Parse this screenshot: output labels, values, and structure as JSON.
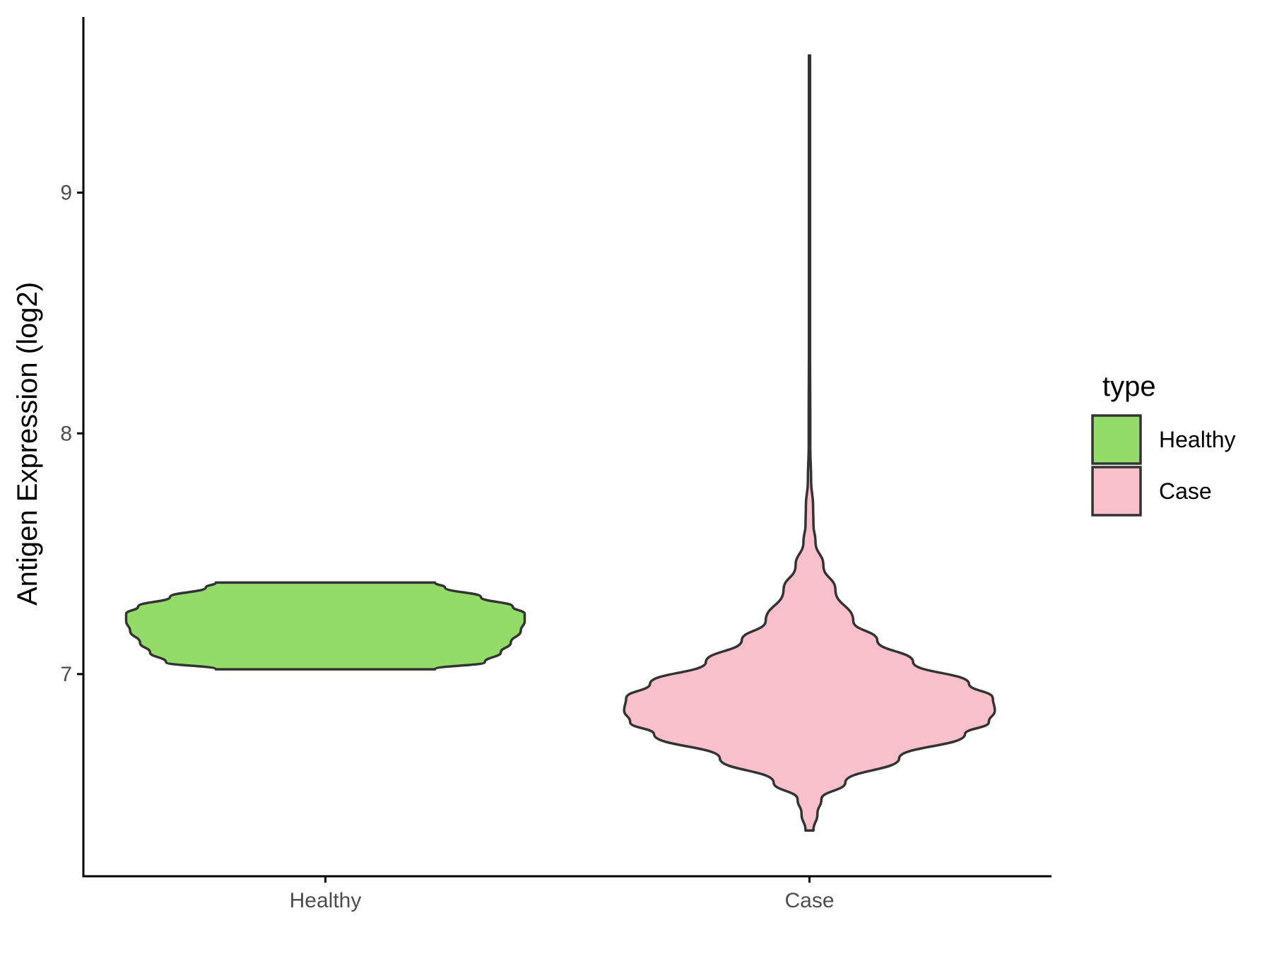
{
  "chart_data": {
    "type": "violin",
    "title": "",
    "xlabel": "",
    "ylabel": "Antigen Expression (log2)",
    "categories": [
      "Healthy",
      "Case"
    ],
    "yticks": [
      7,
      8,
      9
    ],
    "ylim": [
      6.16,
      9.73
    ],
    "grid": false,
    "legend": {
      "title": "type",
      "position": "right",
      "entries": [
        {
          "label": "Healthy",
          "color": "#93dc6a"
        },
        {
          "label": "Case",
          "color": "#f8c0cb"
        }
      ]
    },
    "series": [
      {
        "category": "Healthy",
        "color": "#93dc6a",
        "min": 7.02,
        "max": 7.38,
        "profile": [
          [
            7.02,
            0.55
          ],
          [
            7.05,
            0.8
          ],
          [
            7.09,
            0.88
          ],
          [
            7.13,
            0.93
          ],
          [
            7.18,
            0.98
          ],
          [
            7.22,
            1.0
          ],
          [
            7.25,
            1.0
          ],
          [
            7.28,
            0.94
          ],
          [
            7.32,
            0.78
          ],
          [
            7.36,
            0.6
          ],
          [
            7.38,
            0.55
          ]
        ]
      },
      {
        "category": "Case",
        "color": "#f8c0cb",
        "min": 6.35,
        "max": 9.57,
        "profile": [
          [
            6.35,
            0.02
          ],
          [
            6.42,
            0.04
          ],
          [
            6.48,
            0.06
          ],
          [
            6.55,
            0.18
          ],
          [
            6.65,
            0.45
          ],
          [
            6.75,
            0.78
          ],
          [
            6.8,
            0.9
          ],
          [
            6.85,
            0.93
          ],
          [
            6.9,
            0.92
          ],
          [
            6.96,
            0.8
          ],
          [
            7.05,
            0.52
          ],
          [
            7.14,
            0.34
          ],
          [
            7.22,
            0.22
          ],
          [
            7.35,
            0.13
          ],
          [
            7.45,
            0.07
          ],
          [
            7.55,
            0.03
          ],
          [
            7.62,
            0.02
          ],
          [
            7.7,
            0.018
          ],
          [
            7.8,
            0.008
          ],
          [
            7.95,
            0.004
          ],
          [
            8.1,
            0.004
          ],
          [
            8.3,
            0.002
          ],
          [
            8.6,
            0.002
          ],
          [
            9.0,
            0.002
          ],
          [
            9.3,
            0.002
          ],
          [
            9.57,
            0.002
          ]
        ]
      }
    ]
  }
}
